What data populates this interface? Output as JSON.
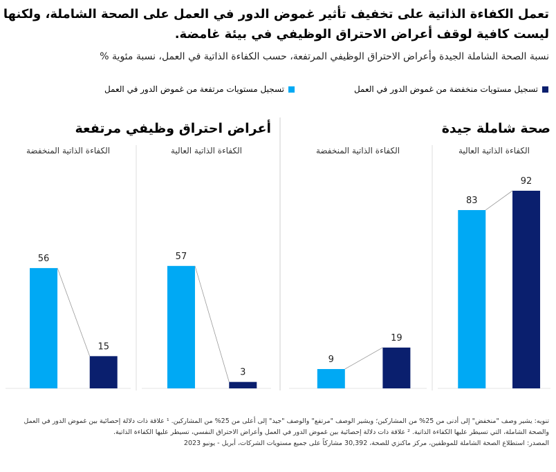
{
  "chart_data": {
    "type": "bar",
    "title": "تعمل الكفاءة الذاتية على تخفيف تأثير غموض الدور في العمل على الصحة الشاملة، ولكنها ليست كافية لوقف أعراض الاحتراق الوظيفي في بيئة غامضة.",
    "subtitle": "نسبة الصحة الشاملة الجيدة وأعراض الاحتراق الوظيفي المرتفعة، حسب الكفاءة الذاتية في العمل، نسبة مئوية %",
    "legend": [
      {
        "name": "تسجيل مستويات منخفضة من غموض الدور في العمل",
        "color": "#0a1f6e"
      },
      {
        "name": "تسجيل مستويات مرتفعة من غموض الدور في العمل",
        "color": "#00a9f4"
      }
    ],
    "panels": [
      {
        "title": "صحة شاملة جيدة",
        "categories": [
          "الكفاءة الذاتية العالية",
          "الكفاءة الذاتية المنخفضة"
        ],
        "series": [
          {
            "values": [
              92,
              19
            ]
          },
          {
            "values": [
              83,
              9
            ]
          }
        ]
      },
      {
        "title": "أعراض احتراق وظيفي مرتفعة",
        "categories": [
          "الكفاءة الذاتية العالية",
          "الكفاءة الذاتية المنخفضة"
        ],
        "series": [
          {
            "values": [
              3,
              15
            ]
          },
          {
            "values": [
              57,
              56
            ]
          }
        ]
      }
    ],
    "notes": [
      "تنويه: يشير وصف \"منخفض\" إلى أدنى من 25% من المشاركين؛ ويشير الوصف \"مرتفع\" والوصف \"جيد\" إلى أعلى من 25% من المشاركين. ¹ علاقة ذات دلالة إحصائية بين غموض الدور في العمل والصحة الشاملة، التي تسيطر عليها الكفاءة الذاتية. ² علاقة ذات دلالة إحصائية بين غموض الدور في العمل وأعراض الاحتراق النفسي، تسيطر عليها الكفاءة الذاتية.",
      "المصدر: استطلاع الصحة الشاملة للموظفين، مركز ماكنزي للصحة، 30,392 مشاركاً على جميع مستويات الشركات، أبريل - يونيو 2023"
    ]
  }
}
